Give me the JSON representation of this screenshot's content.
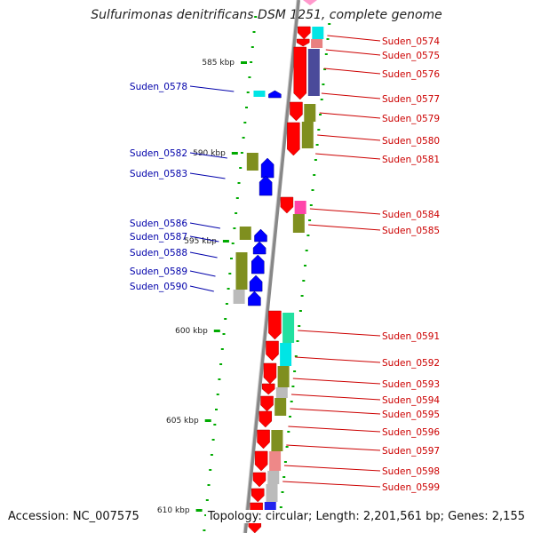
{
  "title": "Sulfurimonas denitrificans DSM 1251, complete genome",
  "accession": "Accession: NC_007575",
  "topology": "Topology: circular; Length: 2,201,561 bp; Genes: 2,155",
  "ticks": [
    "585 kbp",
    "590 kbp",
    "595 kbp",
    "600 kbp",
    "605 kbp",
    "610 kbp"
  ],
  "labels_right": [
    "Suden_0574",
    "Suden_0575",
    "Suden_0576",
    "Suden_0577",
    "Suden_0579",
    "Suden_0580",
    "Suden_0581",
    "Suden_0584",
    "Suden_0585",
    "Suden_0591",
    "Suden_0592",
    "Suden_0593",
    "Suden_0594",
    "Suden_0595",
    "Suden_0596",
    "Suden_0597",
    "Suden_0598",
    "Suden_0599"
  ],
  "labels_left": [
    "Suden_0578",
    "Suden_0582",
    "Suden_0583",
    "Suden_0586",
    "Suden_0587",
    "Suden_0588",
    "Suden_0589",
    "Suden_0590"
  ],
  "colors": {
    "forward_gene": "#ff0000",
    "reverse_gene": "#0000ff",
    "cog_olive": "#7f8f1f",
    "cog_gray": "#bbbbbb",
    "cog_cyan": "#00e5e5",
    "cog_pink": "#ff44aa",
    "cog_teal": "#22e0a0",
    "cog_navy": "#4a4a9a",
    "backbone": "#888888",
    "tick": "#00aa00"
  }
}
